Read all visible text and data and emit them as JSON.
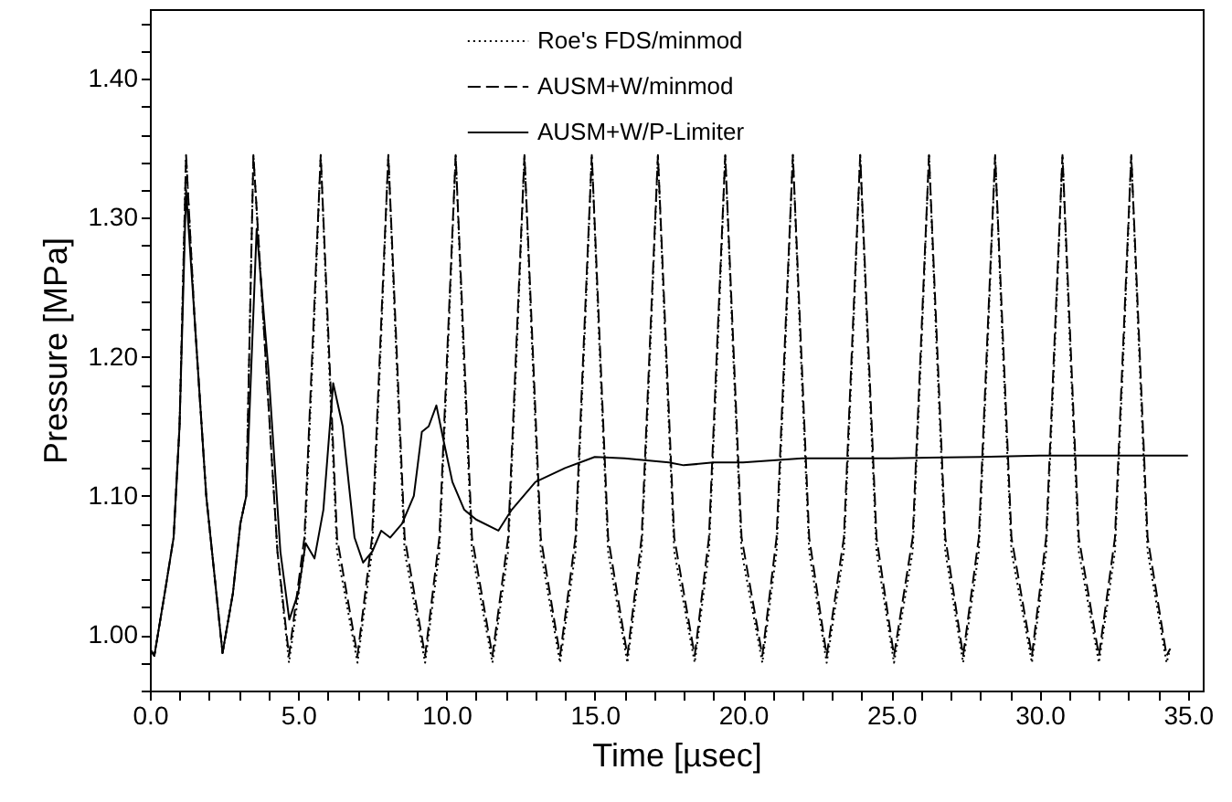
{
  "chart_data": {
    "type": "line",
    "xlabel": "Time [µsec]",
    "ylabel": "Pressure [MPa]",
    "xlim": [
      0,
      35.5
    ],
    "ylim": [
      0.96,
      1.45
    ],
    "xticks": [
      {
        "value": 0,
        "label": "0.0"
      },
      {
        "value": 1,
        "label": null
      },
      {
        "value": 2,
        "label": null
      },
      {
        "value": 3,
        "label": null
      },
      {
        "value": 4,
        "label": null
      },
      {
        "value": 5,
        "label": "5.0"
      },
      {
        "value": 6,
        "label": null
      },
      {
        "value": 7,
        "label": null
      },
      {
        "value": 8,
        "label": null
      },
      {
        "value": 9,
        "label": null
      },
      {
        "value": 10,
        "label": "10.0"
      },
      {
        "value": 11,
        "label": null
      },
      {
        "value": 12,
        "label": null
      },
      {
        "value": 13,
        "label": null
      },
      {
        "value": 14,
        "label": null
      },
      {
        "value": 15,
        "label": "15.0"
      },
      {
        "value": 16,
        "label": null
      },
      {
        "value": 17,
        "label": null
      },
      {
        "value": 18,
        "label": null
      },
      {
        "value": 19,
        "label": null
      },
      {
        "value": 20,
        "label": "20.0"
      },
      {
        "value": 21,
        "label": null
      },
      {
        "value": 22,
        "label": null
      },
      {
        "value": 23,
        "label": null
      },
      {
        "value": 24,
        "label": null
      },
      {
        "value": 25,
        "label": "25.0"
      },
      {
        "value": 26,
        "label": null
      },
      {
        "value": 27,
        "label": null
      },
      {
        "value": 28,
        "label": null
      },
      {
        "value": 29,
        "label": null
      },
      {
        "value": 30,
        "label": "30.0"
      },
      {
        "value": 31,
        "label": null
      },
      {
        "value": 32,
        "label": null
      },
      {
        "value": 33,
        "label": null
      },
      {
        "value": 34,
        "label": null
      },
      {
        "value": 35,
        "label": "35.0"
      }
    ],
    "yticks": [
      {
        "value": 0.96,
        "label": null
      },
      {
        "value": 0.98,
        "label": null
      },
      {
        "value": 1.0,
        "label": "1.00"
      },
      {
        "value": 1.02,
        "label": null
      },
      {
        "value": 1.04,
        "label": null
      },
      {
        "value": 1.06,
        "label": null
      },
      {
        "value": 1.08,
        "label": null
      },
      {
        "value": 1.1,
        "label": "1.10"
      },
      {
        "value": 1.12,
        "label": null
      },
      {
        "value": 1.14,
        "label": null
      },
      {
        "value": 1.16,
        "label": null
      },
      {
        "value": 1.18,
        "label": null
      },
      {
        "value": 1.2,
        "label": "1.20"
      },
      {
        "value": 1.22,
        "label": null
      },
      {
        "value": 1.24,
        "label": null
      },
      {
        "value": 1.26,
        "label": null
      },
      {
        "value": 1.28,
        "label": null
      },
      {
        "value": 1.3,
        "label": "1.30"
      },
      {
        "value": 1.32,
        "label": null
      },
      {
        "value": 1.34,
        "label": null
      },
      {
        "value": 1.36,
        "label": null
      },
      {
        "value": 1.38,
        "label": null
      },
      {
        "value": 1.4,
        "label": "1.40"
      },
      {
        "value": 1.42,
        "label": null
      },
      {
        "value": 1.44,
        "label": null
      }
    ],
    "grid": false,
    "legend": "top",
    "series": [
      {
        "name": "Roe's FDS/minmod",
        "color": "#000000",
        "line_style": "dotted",
        "x": [
          0,
          0.15,
          0.5,
          0.8,
          1.0,
          1.22,
          1.5,
          1.9,
          2.45,
          2.8,
          3.05,
          3.25,
          3.49,
          3.9,
          4.3,
          4.69,
          5.21,
          5.51,
          5.76,
          6.01,
          6.31,
          7.0,
          7.49,
          7.79,
          8.04,
          8.29,
          8.59,
          9.28,
          9.76,
          10.06,
          10.31,
          10.56,
          10.86,
          11.55,
          12.08,
          12.38,
          12.63,
          12.88,
          13.18,
          13.83,
          14.35,
          14.65,
          14.9,
          15.15,
          15.45,
          16.1,
          16.58,
          16.88,
          17.13,
          17.38,
          17.68,
          18.37,
          18.85,
          19.15,
          19.4,
          19.65,
          19.95,
          20.65,
          21.13,
          21.43,
          21.68,
          21.93,
          22.23,
          22.82,
          23.4,
          23.7,
          23.95,
          24.2,
          24.5,
          25.09,
          25.72,
          26.02,
          26.27,
          26.52,
          26.82,
          27.42,
          27.95,
          28.25,
          28.5,
          28.75,
          29.05,
          29.74,
          30.22,
          30.52,
          30.77,
          31.02,
          31.32,
          32.0,
          32.54,
          32.84,
          33.09,
          33.34,
          33.64,
          34.28,
          34.4
        ],
        "values": [
          0.99,
          0.985,
          1.03,
          1.07,
          1.15,
          1.345,
          1.23,
          1.1,
          0.987,
          1.03,
          1.08,
          1.1,
          1.345,
          1.2,
          1.06,
          0.98,
          1.06,
          1.21,
          1.345,
          1.21,
          1.06,
          0.98,
          1.06,
          1.21,
          1.345,
          1.21,
          1.06,
          0.98,
          1.06,
          1.21,
          1.345,
          1.21,
          1.06,
          0.98,
          1.06,
          1.21,
          1.345,
          1.21,
          1.06,
          0.98,
          1.06,
          1.21,
          1.345,
          1.21,
          1.06,
          0.98,
          1.06,
          1.21,
          1.345,
          1.21,
          1.06,
          0.98,
          1.06,
          1.21,
          1.345,
          1.21,
          1.06,
          0.98,
          1.06,
          1.21,
          1.345,
          1.21,
          1.06,
          0.98,
          1.06,
          1.21,
          1.345,
          1.21,
          1.06,
          0.98,
          1.06,
          1.21,
          1.345,
          1.21,
          1.06,
          0.98,
          1.06,
          1.21,
          1.345,
          1.21,
          1.06,
          0.98,
          1.06,
          1.21,
          1.345,
          1.21,
          1.06,
          0.98,
          1.06,
          1.21,
          1.345,
          1.21,
          1.06,
          0.98,
          0.99
        ]
      },
      {
        "name": "AUSM+W/minmod",
        "color": "#000000",
        "line_style": "dashed",
        "x": [
          0,
          0.15,
          0.5,
          0.8,
          1.0,
          1.22,
          1.5,
          1.9,
          2.45,
          2.8,
          3.05,
          3.25,
          3.49,
          3.9,
          4.3,
          4.69,
          5.21,
          5.51,
          5.76,
          6.01,
          6.31,
          7.0,
          7.49,
          7.79,
          8.04,
          8.29,
          8.59,
          9.28,
          9.76,
          10.06,
          10.31,
          10.56,
          10.86,
          11.55,
          12.08,
          12.38,
          12.63,
          12.88,
          13.18,
          13.83,
          14.35,
          14.65,
          14.9,
          15.15,
          15.45,
          16.1,
          16.58,
          16.88,
          17.13,
          17.38,
          17.68,
          18.37,
          18.85,
          19.15,
          19.4,
          19.65,
          19.95,
          20.65,
          21.13,
          21.43,
          21.68,
          21.93,
          22.23,
          22.82,
          23.4,
          23.7,
          23.95,
          24.2,
          24.5,
          25.09,
          25.72,
          26.02,
          26.27,
          26.52,
          26.82,
          27.42,
          27.95,
          28.25,
          28.5,
          28.75,
          29.05,
          29.74,
          30.22,
          30.52,
          30.77,
          31.02,
          31.32,
          32.0,
          32.54,
          32.84,
          33.09,
          33.34,
          33.64,
          34.28,
          34.4
        ],
        "values": [
          0.99,
          0.985,
          1.03,
          1.07,
          1.15,
          1.345,
          1.23,
          1.1,
          0.987,
          1.03,
          1.08,
          1.1,
          1.345,
          1.2,
          1.06,
          0.985,
          1.07,
          1.22,
          1.345,
          1.22,
          1.07,
          0.985,
          1.07,
          1.22,
          1.345,
          1.22,
          1.07,
          0.985,
          1.07,
          1.22,
          1.345,
          1.22,
          1.07,
          0.985,
          1.07,
          1.22,
          1.345,
          1.22,
          1.07,
          0.985,
          1.07,
          1.22,
          1.345,
          1.22,
          1.07,
          0.985,
          1.07,
          1.22,
          1.345,
          1.22,
          1.07,
          0.985,
          1.07,
          1.22,
          1.345,
          1.22,
          1.07,
          0.985,
          1.07,
          1.22,
          1.345,
          1.22,
          1.07,
          0.985,
          1.07,
          1.22,
          1.345,
          1.22,
          1.07,
          0.985,
          1.07,
          1.22,
          1.345,
          1.22,
          1.07,
          0.985,
          1.07,
          1.22,
          1.345,
          1.22,
          1.07,
          0.985,
          1.07,
          1.22,
          1.345,
          1.22,
          1.07,
          0.985,
          1.07,
          1.22,
          1.345,
          1.22,
          1.07,
          0.985,
          0.99
        ]
      },
      {
        "name": "AUSM+W/P-Limiter",
        "color": "#000000",
        "line_style": "solid",
        "x": [
          0,
          0.15,
          0.5,
          0.8,
          1.0,
          1.22,
          1.5,
          1.9,
          2.45,
          2.8,
          3.05,
          3.25,
          3.6,
          4.0,
          4.4,
          4.7,
          5.0,
          5.25,
          5.55,
          5.85,
          6.18,
          6.5,
          6.9,
          7.19,
          7.5,
          7.8,
          8.1,
          8.5,
          8.9,
          9.17,
          9.4,
          9.66,
          9.9,
          10.2,
          10.6,
          11.0,
          11.75,
          12.2,
          13.0,
          14.0,
          15.0,
          16.0,
          16.5,
          17.0,
          17.5,
          18.0,
          19.0,
          20.0,
          22.0,
          25.0,
          28.0,
          30.0,
          35.0
        ],
        "values": [
          0.99,
          0.985,
          1.03,
          1.07,
          1.15,
          1.32,
          1.23,
          1.1,
          0.987,
          1.03,
          1.08,
          1.1,
          1.292,
          1.19,
          1.06,
          1.011,
          1.03,
          1.066,
          1.055,
          1.09,
          1.181,
          1.15,
          1.07,
          1.052,
          1.06,
          1.075,
          1.07,
          1.08,
          1.1,
          1.146,
          1.15,
          1.165,
          1.14,
          1.11,
          1.09,
          1.083,
          1.075,
          1.09,
          1.11,
          1.12,
          1.128,
          1.127,
          1.126,
          1.125,
          1.124,
          1.122,
          1.124,
          1.124,
          1.127,
          1.127,
          1.128,
          1.129,
          1.129
        ]
      }
    ]
  }
}
